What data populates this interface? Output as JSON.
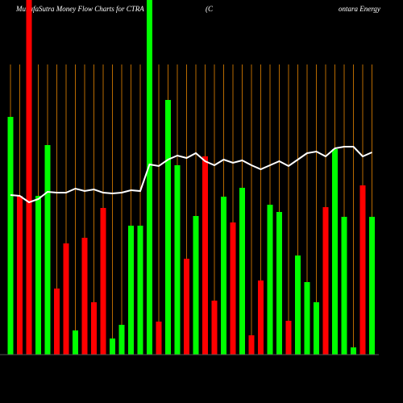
{
  "chart_data": {
    "type": "bar",
    "title": "MunafaSutra  Money Flow  Charts for CTRA",
    "subtitle_left": "(C",
    "subtitle_right": "ontara  Energy",
    "ylim": [
      0,
      440
    ],
    "bars": {
      "values": [
        295,
        197,
        440,
        197,
        260,
        82,
        138,
        30,
        145,
        65,
        182,
        20,
        37,
        160,
        160,
        440,
        41,
        316,
        235,
        119,
        172,
        246,
        67,
        196,
        164,
        207,
        24,
        92,
        186,
        177,
        42,
        123,
        90,
        65,
        183,
        255,
        171,
        9,
        210,
        171
      ],
      "colors": [
        "#00ff00",
        "#ff0000",
        "#ff0000",
        "#00ff00",
        "#00ff00",
        "#ff0000",
        "#ff0000",
        "#00ff00",
        "#ff0000",
        "#ff0000",
        "#ff0000",
        "#00ff00",
        "#00ff00",
        "#00ff00",
        "#00ff00",
        "#00ff00",
        "#ff0000",
        "#00ff00",
        "#00ff00",
        "#ff0000",
        "#00ff00",
        "#ff0000",
        "#ff0000",
        "#00ff00",
        "#ff0000",
        "#00ff00",
        "#ff0000",
        "#ff0000",
        "#00ff00",
        "#00ff00",
        "#ff0000",
        "#00ff00",
        "#00ff00",
        "#00ff00",
        "#ff0000",
        "#00ff00",
        "#00ff00",
        "#00ff00",
        "#ff0000",
        "#00ff00"
      ]
    },
    "line": {
      "color": "#ffffff",
      "values": [
        198,
        197,
        189,
        193,
        202,
        201,
        201,
        206,
        203,
        205,
        201,
        200,
        201,
        204,
        203,
        236,
        234,
        242,
        247,
        244,
        250,
        240,
        235,
        242,
        238,
        241,
        235,
        230,
        235,
        240,
        234,
        242,
        250,
        252,
        246,
        256,
        258,
        258,
        246,
        251
      ]
    },
    "guide_color": "#b86a00"
  }
}
